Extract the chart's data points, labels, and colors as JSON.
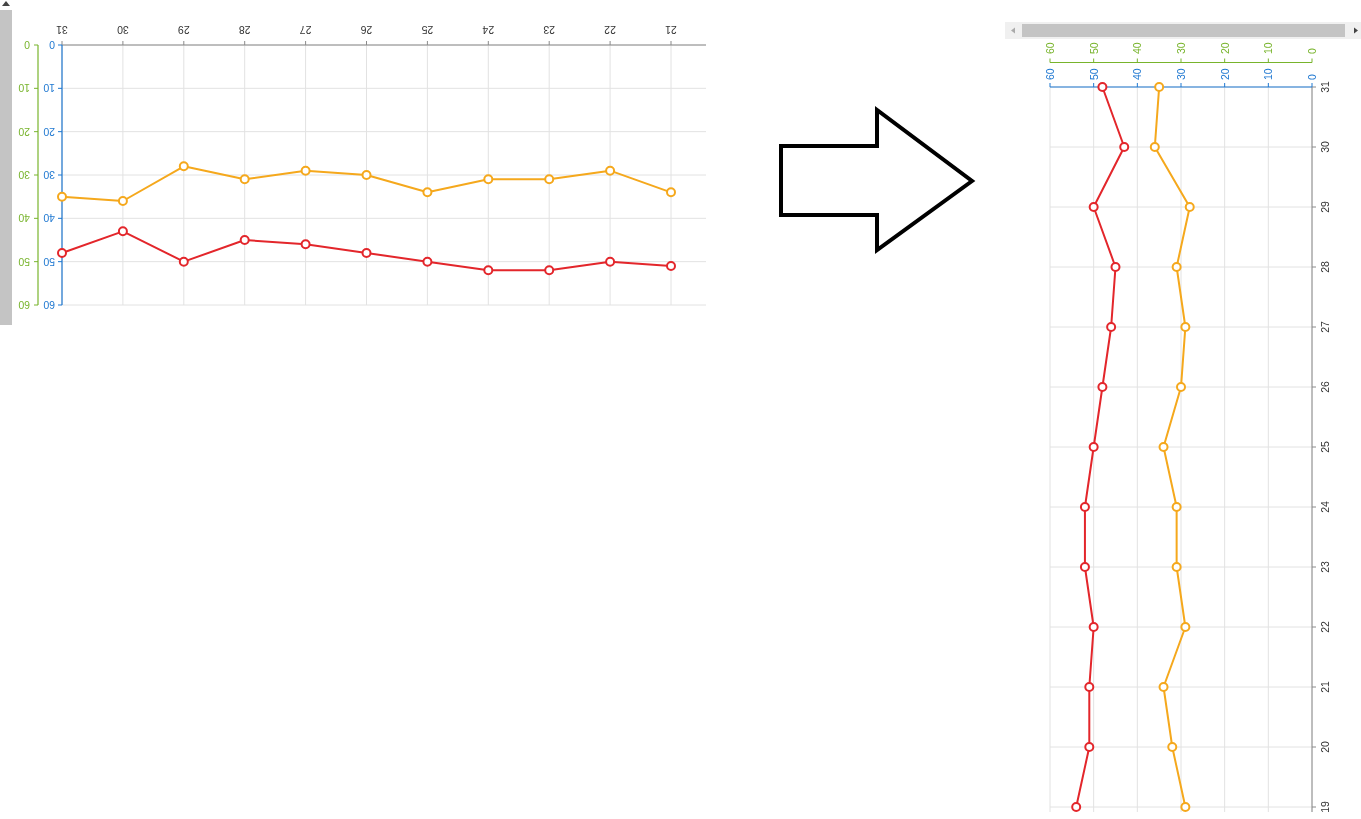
{
  "chart_data": [
    {
      "type": "line",
      "categories": [
        "31",
        "30",
        "29",
        "28",
        "27",
        "26",
        "25",
        "24",
        "23",
        "22",
        "21"
      ],
      "series": [
        {
          "color": "#e3262b",
          "values": [
            48,
            43,
            50,
            45,
            46,
            48,
            50,
            52,
            52,
            50,
            51
          ]
        },
        {
          "color": "#f5a81c",
          "values": [
            35,
            36,
            28,
            31,
            29,
            30,
            34,
            31,
            31,
            29,
            34
          ]
        }
      ],
      "ylim": [
        60,
        0
      ],
      "yticks": [
        0,
        10,
        20,
        30,
        40,
        50,
        60
      ],
      "y2lim": [
        60,
        0
      ],
      "y2ticks": [
        0,
        10,
        20,
        30,
        40,
        50,
        60
      ],
      "grid": true,
      "marker": "circle"
    },
    {
      "type": "line",
      "orientation": "horizontal",
      "categories": [
        "31",
        "30",
        "29",
        "28",
        "27",
        "26",
        "25",
        "24",
        "23",
        "22",
        "21",
        "20",
        "19"
      ],
      "series": [
        {
          "color": "#e3262b",
          "values": [
            48,
            43,
            50,
            45,
            46,
            48,
            50,
            52,
            52,
            50,
            51,
            51,
            54
          ]
        },
        {
          "color": "#f5a81c",
          "values": [
            35,
            36,
            28,
            31,
            29,
            30,
            34,
            31,
            31,
            29,
            34,
            32,
            29
          ]
        }
      ],
      "xlim": [
        60,
        0
      ],
      "xticks": [
        0,
        10,
        20,
        30,
        40,
        50,
        60
      ],
      "x2lim": [
        60,
        0
      ],
      "x2ticks": [
        0,
        10,
        20,
        30,
        40,
        50,
        60
      ],
      "grid": true,
      "marker": "circle"
    }
  ]
}
